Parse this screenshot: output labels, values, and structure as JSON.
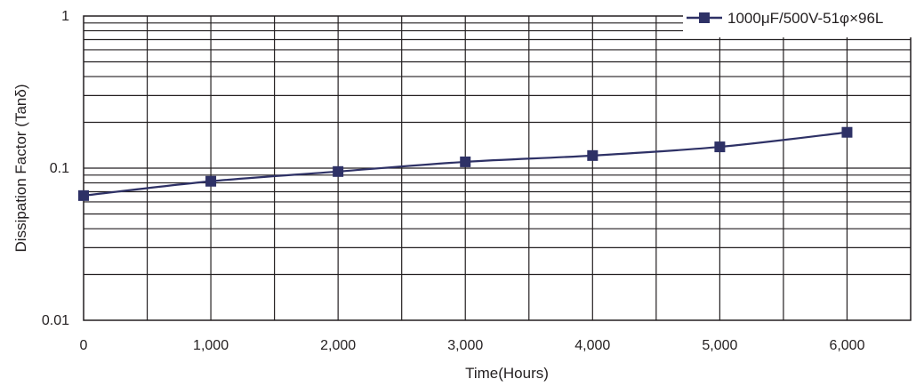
{
  "chart_data": {
    "type": "line",
    "title": "",
    "xlabel": "Time(Hours)",
    "ylabel": "Dissipation Factor (Tanδ)",
    "x": [
      0,
      1000,
      2000,
      3000,
      4000,
      5000,
      6000
    ],
    "x_tick_values": [
      0,
      1000,
      2000,
      3000,
      4000,
      5000,
      6000
    ],
    "x_tick_labels": [
      "0",
      "1,000",
      "2,000",
      "3,000",
      "4,000",
      "5,000",
      "6,000"
    ],
    "xlim": [
      0,
      6500
    ],
    "y_scale": "log",
    "ylim": [
      0.01,
      1
    ],
    "y_tick_values": [
      0.01,
      0.1,
      1
    ],
    "y_tick_labels": [
      "0.01",
      "0.1",
      "1"
    ],
    "grid": true,
    "legend_position": "top-right",
    "series": [
      {
        "name": "1000μF/500V-51φ×96L",
        "color": "#2e3166",
        "marker": "square",
        "values": [
          0.066,
          0.082,
          0.095,
          0.11,
          0.121,
          0.138,
          0.172
        ]
      }
    ]
  }
}
